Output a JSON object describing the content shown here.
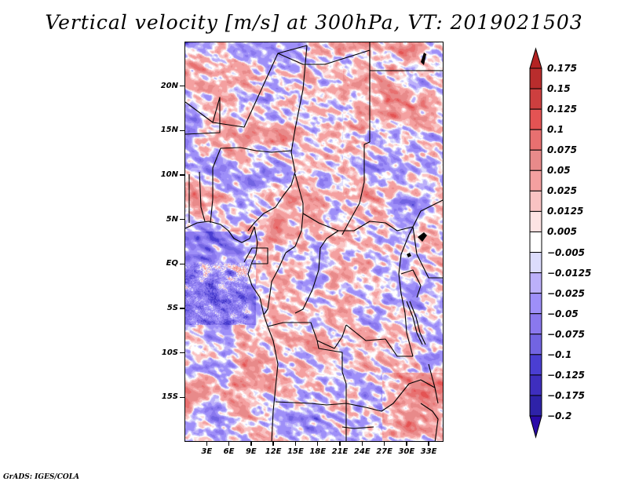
{
  "title": "Vertical velocity [m/s] at 300hPa, VT: 2019021503",
  "footer": "GrADS: IGES/COLA",
  "map": {
    "region": "Central and West-Central Africa",
    "lat_range": [
      -20,
      25
    ],
    "lon_range": [
      0,
      35
    ],
    "y_ticks": [
      {
        "label": "20N",
        "lat": 20
      },
      {
        "label": "15N",
        "lat": 15
      },
      {
        "label": "10N",
        "lat": 10
      },
      {
        "label": "5N",
        "lat": 5
      },
      {
        "label": "EQ",
        "lat": 0
      },
      {
        "label": "5S",
        "lat": -5
      },
      {
        "label": "10S",
        "lat": -10
      },
      {
        "label": "15S",
        "lat": -15
      }
    ],
    "x_ticks": [
      {
        "label": "3E",
        "lon": 3
      },
      {
        "label": "6E",
        "lon": 6
      },
      {
        "label": "9E",
        "lon": 9
      },
      {
        "label": "12E",
        "lon": 12
      },
      {
        "label": "15E",
        "lon": 15
      },
      {
        "label": "18E",
        "lon": 18
      },
      {
        "label": "21E",
        "lon": 21
      },
      {
        "label": "24E",
        "lon": 24
      },
      {
        "label": "27E",
        "lon": 27
      },
      {
        "label": "30E",
        "lon": 30
      },
      {
        "label": "33E",
        "lon": 33
      }
    ]
  },
  "colorbar": {
    "levels": [
      "0.175",
      "0.15",
      "0.125",
      "0.1",
      "0.075",
      "0.05",
      "0.025",
      "0.0125",
      "0.005",
      "-0.005",
      "-0.0125",
      "-0.025",
      "-0.05",
      "-0.075",
      "-0.1",
      "-0.125",
      "-0.175",
      "-0.2"
    ],
    "colors": [
      "#b42323",
      "#b92d2d",
      "#cd3f3f",
      "#e45353",
      "#e87070",
      "#e88a8a",
      "#f4a0a0",
      "#f9c3c3",
      "#fde3e3",
      "#ffffff",
      "#dcdcfc",
      "#bcb0fa",
      "#9e8ff8",
      "#8a78ee",
      "#7264e2",
      "#4a3ed2",
      "#3e2ebe",
      "#2e22a8",
      "#2a0aa8"
    ],
    "over_color": "#b42323",
    "under_color": "#2a0aa8"
  }
}
